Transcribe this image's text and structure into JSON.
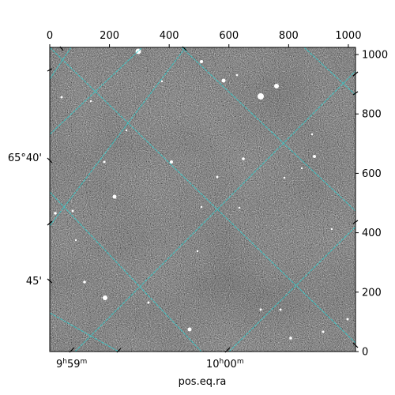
{
  "chart_data": {
    "type": "image",
    "xlabel": "pos.eq.ra",
    "ylabel": "",
    "pixel_axes": {
      "x_range": [
        0,
        1024
      ],
      "y_range": [
        0,
        1024
      ],
      "top_ticks": [
        {
          "value": 0,
          "label": "0"
        },
        {
          "value": 200,
          "label": "200"
        },
        {
          "value": 400,
          "label": "400"
        },
        {
          "value": 600,
          "label": "600"
        },
        {
          "value": 800,
          "label": "800"
        },
        {
          "value": 1000,
          "label": "1000"
        }
      ],
      "right_ticks": [
        {
          "value": 0,
          "label": "0"
        },
        {
          "value": 200,
          "label": "200"
        },
        {
          "value": 400,
          "label": "400"
        },
        {
          "value": 600,
          "label": "600"
        },
        {
          "value": 800,
          "label": "800"
        },
        {
          "value": 1000,
          "label": "1000"
        }
      ]
    },
    "world_axes": {
      "ra_ticks": [
        {
          "label_h": "9",
          "label_hu": "h",
          "label_m": "59",
          "label_mu": "m",
          "value": "9h59m"
        },
        {
          "label_h": "10",
          "label_hu": "h",
          "label_m": "00",
          "label_mu": "m",
          "value": "10h00m"
        }
      ],
      "dec_ticks": [
        {
          "label": "65°40'",
          "value": "+65°40'"
        },
        {
          "label": "45'",
          "value": "+65°45'"
        }
      ]
    },
    "grid": true,
    "grid_color": "#33cccc",
    "colormap": "gray"
  }
}
